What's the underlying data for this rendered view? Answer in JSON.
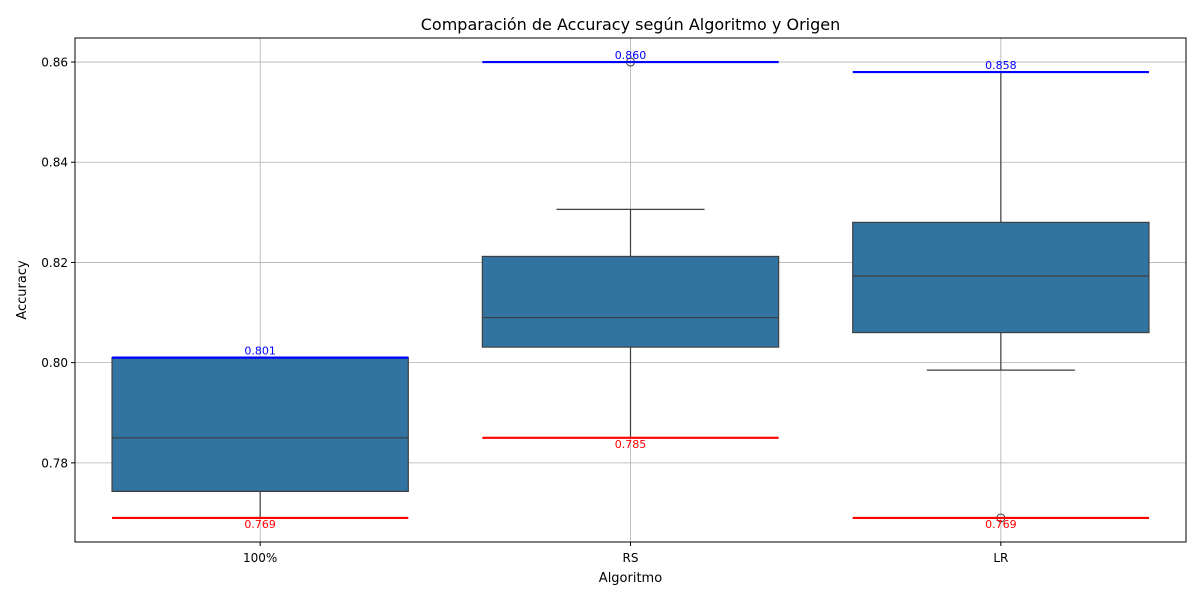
{
  "chart_data": {
    "type": "box",
    "title": "Comparación de Accuracy según Algoritmo y Origen",
    "xlabel": "Algoritmo",
    "ylabel": "Accuracy",
    "categories": [
      "100%",
      "RS",
      "LR"
    ],
    "ylim": [
      0.7642,
      0.8648
    ],
    "yticks": [
      0.78,
      0.8,
      0.82,
      0.84,
      0.86
    ],
    "ytick_labels": [
      "0.78",
      "0.80",
      "0.82",
      "0.84",
      "0.86"
    ],
    "grid": true,
    "box_color": "#3274a1",
    "boxes": [
      {
        "category": "100%",
        "q1": 0.7743,
        "median": 0.785,
        "q3": 0.801,
        "whisker_low": 0.769,
        "whisker_high": 0.801,
        "outliers": []
      },
      {
        "category": "RS",
        "q1": 0.8031,
        "median": 0.809,
        "q3": 0.8212,
        "whisker_low": 0.785,
        "whisker_high": 0.8306,
        "outliers": [
          0.86
        ]
      },
      {
        "category": "LR",
        "q1": 0.806,
        "median": 0.8173,
        "q3": 0.828,
        "whisker_low": 0.7985,
        "whisker_high": 0.858,
        "outliers": [
          0.769
        ]
      }
    ],
    "max_markers": {
      "color": "#0000ff",
      "values": [
        0.801,
        0.86,
        0.858
      ],
      "labels": [
        "0.801",
        "0.860",
        "0.858"
      ]
    },
    "min_markers": {
      "color": "#ff0000",
      "values": [
        0.769,
        0.785,
        0.769
      ],
      "labels": [
        "0.769",
        "0.785",
        "0.769"
      ]
    }
  }
}
